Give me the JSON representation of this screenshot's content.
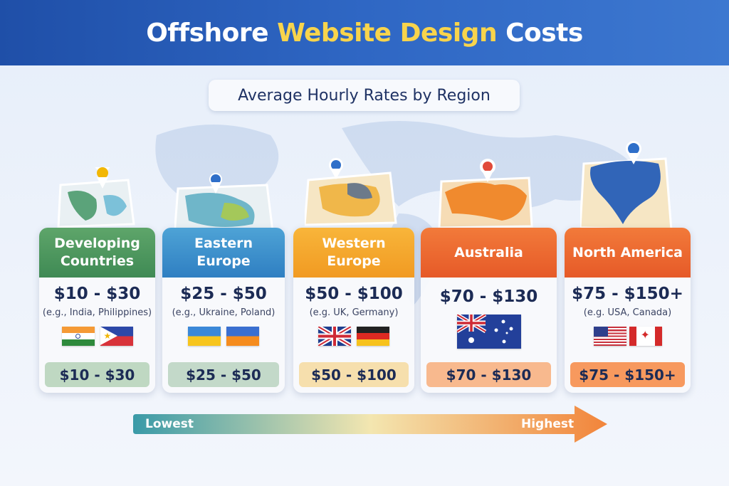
{
  "header": {
    "title_part1": "Offshore",
    "title_highlight": "Website Design",
    "title_part2": "Costs"
  },
  "subtitle": "Average Hourly Rates by Region",
  "colors": {
    "banner": "#2f67c4",
    "highlight": "#f8d44c",
    "text": "#1c2b55",
    "green": "#4f9a5c",
    "blue": "#3d8fce",
    "amber": "#f4a62a",
    "orange": "#ec6a30"
  },
  "regions": [
    {
      "name": "Developing Countries",
      "range": "$10 - $30",
      "examples": "(e.g., India, Philippines)",
      "flags": [
        "india-flag",
        "philippines-flag"
      ],
      "badge": "$10 - $30",
      "pin_color": "#f2b705"
    },
    {
      "name": "Eastern Europe",
      "range": "$25 - $50",
      "examples": "(e.g., Ukraine, Poland)",
      "flags": [
        "ukraine-flag",
        "ukraine-flag"
      ],
      "badge": "$25 - $50",
      "pin_color": "#2f6fc9"
    },
    {
      "name": "Western Europe",
      "range": "$50 - $100",
      "examples": "(e.g. UK, Germany)",
      "flags": [
        "uk-flag",
        "germany-flag"
      ],
      "badge": "$50 - $100",
      "pin_color": "#2f6fc9"
    },
    {
      "name": "Australia",
      "range": "$70 - $130",
      "flags": [
        "australia-flag"
      ],
      "badge": "$70 - $130",
      "pin_color": "#e14a3a"
    },
    {
      "name": "North America",
      "range": "$75 - $150+",
      "examples": "(e.g. USA, Canada)",
      "flags": [
        "usa-flag",
        "canada-flag"
      ],
      "badge": "$75 - $150+",
      "pin_color": "#2f6fc9"
    }
  ],
  "scale": {
    "low": "Lowest",
    "high": "Highest"
  }
}
